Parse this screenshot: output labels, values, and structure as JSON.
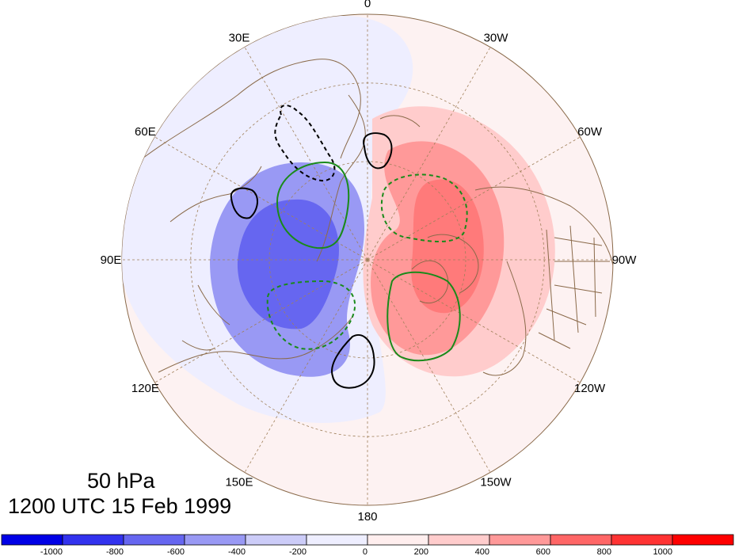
{
  "map": {
    "projection": "north-polar-stereographic",
    "level": "50 hPa",
    "time": "1200 UTC 15 Feb 1999",
    "longitude_labels": [
      {
        "text": "0",
        "lon": 0
      },
      {
        "text": "30W",
        "lon": -30
      },
      {
        "text": "60W",
        "lon": -60
      },
      {
        "text": "90W",
        "lon": -90
      },
      {
        "text": "120W",
        "lon": -120
      },
      {
        "text": "150W",
        "lon": -150
      },
      {
        "text": "180",
        "lon": 180
      },
      {
        "text": "150E",
        "lon": 150
      },
      {
        "text": "120E",
        "lon": 120
      },
      {
        "text": "90E",
        "lon": 90
      },
      {
        "text": "60E",
        "lon": 60
      },
      {
        "text": "30E",
        "lon": 30
      }
    ],
    "grid": {
      "latitude_circles": [
        30,
        60
      ],
      "meridian_spacing_deg": 30,
      "style": "dashed",
      "color": "#a0805a"
    },
    "colors": {
      "coastline": "#8a6a4a",
      "contour_positive": "#000000",
      "contour_green": "#1a8a1a"
    }
  },
  "colorbar": {
    "levels": [
      -1000,
      -800,
      -600,
      -400,
      -200,
      0,
      200,
      400,
      600,
      800,
      1000
    ],
    "labels": [
      "-1000",
      "-800",
      "-600",
      "-400",
      "-200",
      "0",
      "200",
      "400",
      "600",
      "800",
      "1000"
    ],
    "colors": [
      "#0000e6",
      "#3232ee",
      "#6666f0",
      "#9999f4",
      "#ccccf8",
      "#eeeeff",
      "#ffeeee",
      "#ffcccc",
      "#ff9999",
      "#ff6666",
      "#ff3333",
      "#ff0000"
    ]
  }
}
